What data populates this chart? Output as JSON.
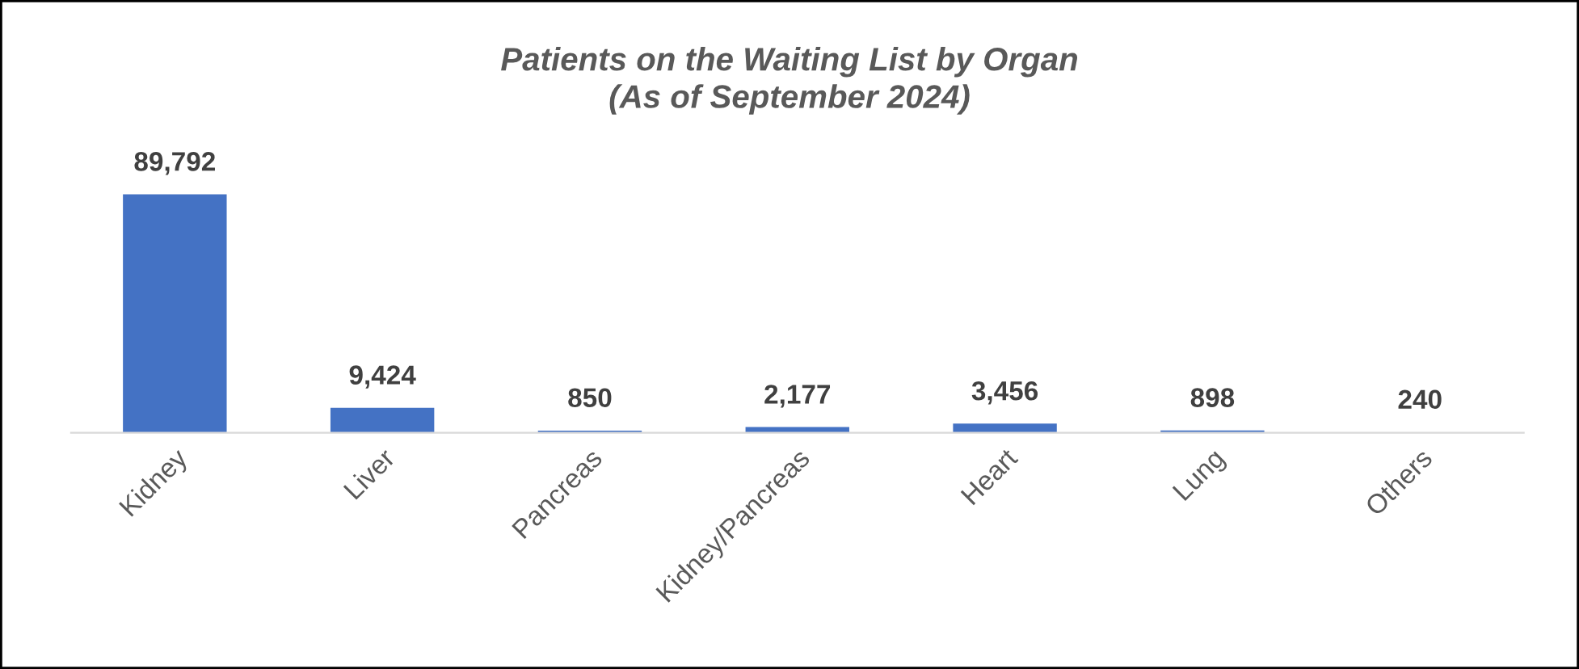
{
  "chart_data": {
    "type": "bar",
    "title": "Patients on the Waiting List by Organ\n(As of September 2024)",
    "categories": [
      "Kidney",
      "Liver",
      "Pancreas",
      "Kidney/Pancreas",
      "Heart",
      "Lung",
      "Others"
    ],
    "values": [
      89792,
      9424,
      850,
      2177,
      3456,
      898,
      240
    ],
    "value_labels": [
      "89,792",
      "9,424",
      "850",
      "2,177",
      "3,456",
      "898",
      "240"
    ],
    "color": "#4472c4",
    "grid": false,
    "legend": false
  }
}
